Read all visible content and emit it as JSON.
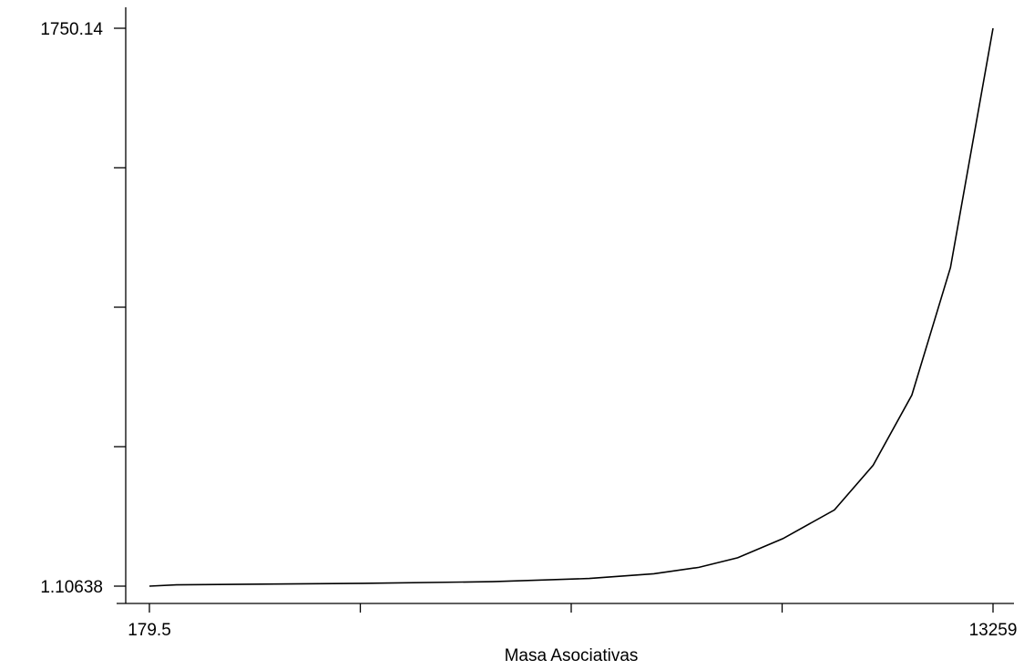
{
  "chart_data": {
    "type": "line",
    "title": "",
    "xlabel": "Masa Asociativas",
    "ylabel": "",
    "xlim": [
      179.5,
      13259
    ],
    "ylim": [
      1.10638,
      1750.14
    ],
    "x_tick_labels": [
      "179.5",
      "",
      "",
      "",
      "13259"
    ],
    "y_tick_labels": [
      "1.10638",
      "",
      "",
      "",
      "1750.14"
    ],
    "grid": false,
    "series": [
      {
        "x": [
          179.5,
          600,
          3500,
          5500,
          7000,
          8000,
          8700,
          9300,
          10000,
          10800,
          11400,
          12000,
          12600,
          13259
        ],
        "y": [
          1.10638,
          5,
          10,
          15,
          25,
          40,
          60,
          90,
          150,
          240,
          380,
          600,
          1000,
          1750.14
        ]
      }
    ]
  }
}
